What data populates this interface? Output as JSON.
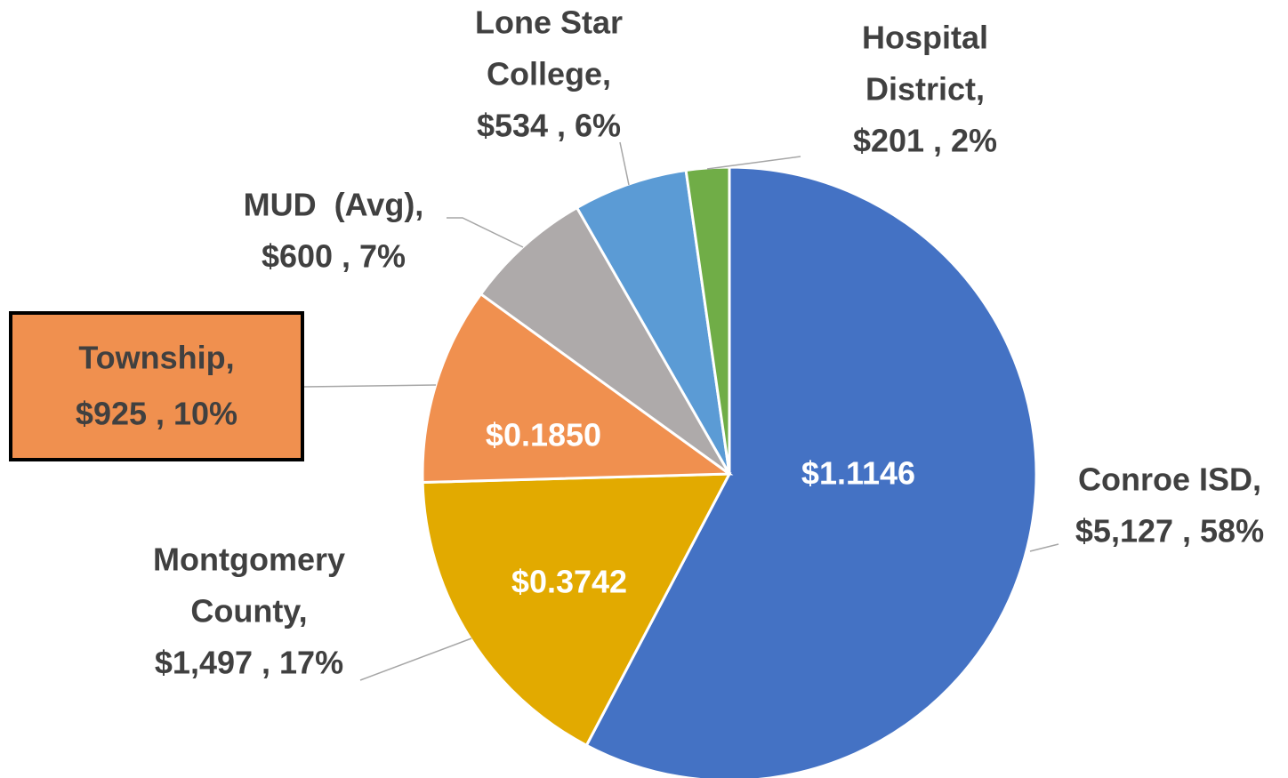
{
  "chart_data": {
    "type": "pie",
    "values": [
      5127,
      1497,
      925,
      600,
      534,
      201
    ],
    "value_labels": [
      [
        "Conroe ISD,",
        "$5,127 , 58%"
      ],
      [
        "Montgomery",
        "County,",
        "$1,497 , 17%"
      ],
      [
        "Township,",
        "$925 , 10%"
      ],
      [
        "MUD  (Avg),",
        "$600 , 7%"
      ],
      [
        "Lone Star",
        "College,",
        "$534 , 6%"
      ],
      [
        "Hospital",
        "District,",
        "$201 , 2%"
      ]
    ],
    "inner_labels": [
      "$1.1146",
      "$0.3742",
      "$0.1850",
      null,
      null,
      null
    ],
    "colors": [
      "#4472c4",
      "#e2aa00",
      "#f0904f",
      "#aeaaaa",
      "#5b9bd5",
      "#70ad47"
    ]
  }
}
